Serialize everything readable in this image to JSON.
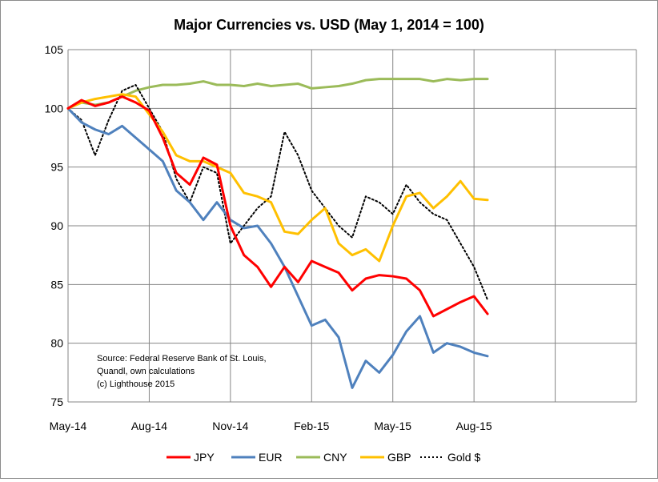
{
  "chart_data": {
    "type": "line",
    "title": "Major Currencies vs. USD (May 1, 2014 = 100)",
    "xlabel": "",
    "ylabel": "",
    "ylim": [
      75,
      105
    ],
    "yticks": [
      75,
      80,
      85,
      90,
      95,
      100,
      105
    ],
    "x_tick_labels": [
      "May-14",
      "Aug-14",
      "Nov-14",
      "Feb-15",
      "May-15",
      "Aug-15"
    ],
    "grid": true,
    "legend_position": "bottom",
    "note": [
      "Source: Federal Reserve Bank of St. Louis,",
      "Quandl, own calculations",
      "(c) Lighthouse 2015"
    ],
    "x_months": [
      0,
      0.5,
      1,
      1.5,
      2,
      2.5,
      3,
      3.5,
      4,
      4.5,
      5,
      5.5,
      6,
      6.5,
      7,
      7.5,
      8,
      8.5,
      9,
      9.5,
      10,
      10.5,
      11,
      11.5,
      12,
      12.5,
      13,
      13.5,
      14,
      14.5,
      15,
      15.5
    ],
    "series": [
      {
        "name": "JPY",
        "color": "#ff0000",
        "dash": "",
        "values": [
          100.0,
          100.7,
          100.2,
          100.5,
          101.0,
          100.5,
          99.8,
          97.5,
          94.5,
          93.5,
          95.8,
          95.2,
          90.0,
          87.5,
          86.5,
          84.8,
          86.5,
          85.2,
          87.0,
          86.5,
          86.0,
          84.5,
          85.5,
          85.8,
          85.7,
          85.5,
          84.5,
          82.3,
          82.9,
          83.5,
          84.0,
          82.5
        ]
      },
      {
        "name": "EUR",
        "color": "#4f81bd",
        "dash": "",
        "values": [
          100.0,
          98.8,
          98.2,
          97.8,
          98.5,
          97.5,
          96.5,
          95.5,
          93.0,
          92.0,
          90.5,
          92.0,
          90.5,
          89.8,
          90.0,
          88.5,
          86.5,
          84.0,
          81.5,
          82.0,
          80.5,
          76.2,
          78.5,
          77.5,
          79.0,
          81.0,
          82.3,
          79.2,
          80.0,
          79.7,
          79.2,
          78.9
        ]
      },
      {
        "name": "CNY",
        "color": "#9bbb59",
        "dash": "",
        "values": [
          100.0,
          100.5,
          100.3,
          100.5,
          101.0,
          101.5,
          101.8,
          102.0,
          102.0,
          102.1,
          102.3,
          102.0,
          102.0,
          101.9,
          102.1,
          101.9,
          102.0,
          102.1,
          101.7,
          101.8,
          101.9,
          102.1,
          102.4,
          102.5,
          102.5,
          102.5,
          102.5,
          102.3,
          102.5,
          102.4,
          102.5,
          102.5
        ]
      },
      {
        "name": "GBP",
        "color": "#ffc000",
        "dash": "",
        "values": [
          100.0,
          100.5,
          100.8,
          101.0,
          101.2,
          101.0,
          99.5,
          98.0,
          96.0,
          95.5,
          95.5,
          95.0,
          94.5,
          92.8,
          92.5,
          92.0,
          89.5,
          89.3,
          90.5,
          91.5,
          88.5,
          87.5,
          88.0,
          87.0,
          90.0,
          92.5,
          92.8,
          91.5,
          92.5,
          93.8,
          92.3,
          92.2
        ]
      },
      {
        "name": "Gold $",
        "color": "#000000",
        "dash": "2 3",
        "values": [
          100.0,
          99.0,
          96.0,
          99.0,
          101.5,
          102.0,
          100.0,
          98.0,
          94.0,
          92.0,
          95.0,
          94.5,
          88.5,
          90.0,
          91.5,
          92.5,
          98.0,
          96.0,
          93.0,
          91.5,
          90.0,
          89.0,
          92.5,
          92.0,
          91.0,
          93.5,
          92.0,
          91.0,
          90.5,
          88.5,
          86.5,
          83.7
        ]
      }
    ]
  }
}
